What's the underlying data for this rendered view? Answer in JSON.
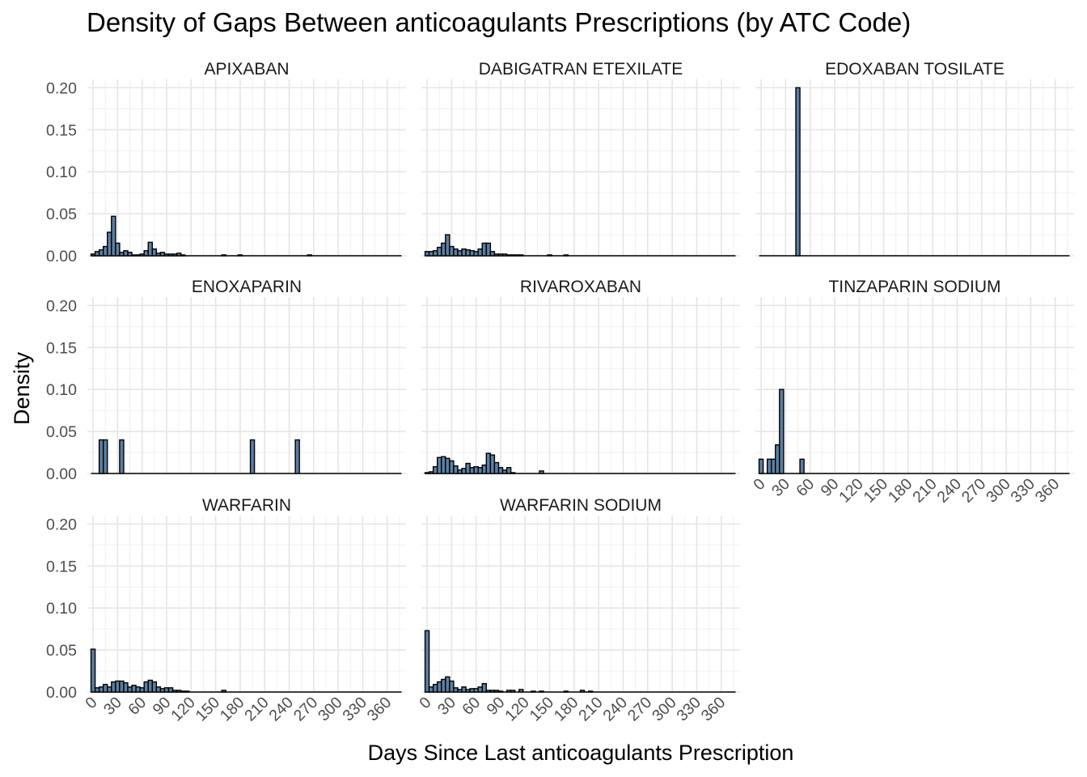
{
  "chart_data": {
    "type": "bar",
    "title": "Density of Gaps Between anticoagulants Prescriptions (by ATC Code)",
    "xlabel": "Days Since Last anticoagulants Prescription",
    "ylabel": "Density",
    "xlim": [
      -7,
      383
    ],
    "ylim": [
      0,
      0.21
    ],
    "xticks": [
      "0",
      "30",
      "60",
      "90",
      "120",
      "150",
      "180",
      "210",
      "240",
      "270",
      "300",
      "330",
      "360"
    ],
    "yticks": [
      "0.00",
      "0.05",
      "0.10",
      "0.15",
      "0.20"
    ],
    "grid": true,
    "bin_width": 5,
    "bar_fill": "#5b7fa3",
    "bar_outline": "#000000",
    "panels": [
      {
        "name": "APIXABAN",
        "bars": [
          [
            0,
            0.002
          ],
          [
            5,
            0.005
          ],
          [
            10,
            0.007
          ],
          [
            15,
            0.011
          ],
          [
            20,
            0.028
          ],
          [
            25,
            0.047
          ],
          [
            30,
            0.015
          ],
          [
            35,
            0.004
          ],
          [
            40,
            0.006
          ],
          [
            45,
            0.004
          ],
          [
            50,
            0.001
          ],
          [
            55,
            0.001
          ],
          [
            60,
            0.002
          ],
          [
            65,
            0.006
          ],
          [
            70,
            0.016
          ],
          [
            75,
            0.008
          ],
          [
            80,
            0.003
          ],
          [
            85,
            0.004
          ],
          [
            90,
            0.002
          ],
          [
            95,
            0.002
          ],
          [
            100,
            0.002
          ],
          [
            105,
            0.003
          ],
          [
            110,
            0.001
          ],
          [
            160,
            0.001
          ],
          [
            180,
            0.001
          ],
          [
            265,
            0.001
          ]
        ]
      },
      {
        "name": "DABIGATRAN ETEXILATE",
        "bars": [
          [
            0,
            0.005
          ],
          [
            5,
            0.005
          ],
          [
            10,
            0.006
          ],
          [
            15,
            0.01
          ],
          [
            20,
            0.015
          ],
          [
            25,
            0.025
          ],
          [
            30,
            0.011
          ],
          [
            35,
            0.008
          ],
          [
            40,
            0.006
          ],
          [
            45,
            0.008
          ],
          [
            50,
            0.007
          ],
          [
            55,
            0.006
          ],
          [
            60,
            0.005
          ],
          [
            65,
            0.008
          ],
          [
            70,
            0.015
          ],
          [
            75,
            0.015
          ],
          [
            80,
            0.005
          ],
          [
            85,
            0.002
          ],
          [
            90,
            0.002
          ],
          [
            95,
            0.002
          ],
          [
            100,
            0.001
          ],
          [
            105,
            0.001
          ],
          [
            110,
            0.001
          ],
          [
            115,
            0.001
          ],
          [
            150,
            0.001
          ],
          [
            170,
            0.001
          ]
        ]
      },
      {
        "name": "EDOXABAN TOSILATE",
        "bars": [
          [
            45,
            0.2
          ]
        ]
      },
      {
        "name": "ENOXAPARIN",
        "bars": [
          [
            10,
            0.04
          ],
          [
            15,
            0.04
          ],
          [
            35,
            0.04
          ],
          [
            195,
            0.04
          ],
          [
            250,
            0.04
          ]
        ]
      },
      {
        "name": "RIVAROXABAN",
        "bars": [
          [
            0,
            0.001
          ],
          [
            5,
            0.002
          ],
          [
            10,
            0.008
          ],
          [
            15,
            0.019
          ],
          [
            20,
            0.02
          ],
          [
            25,
            0.018
          ],
          [
            30,
            0.015
          ],
          [
            35,
            0.009
          ],
          [
            40,
            0.004
          ],
          [
            45,
            0.006
          ],
          [
            50,
            0.012
          ],
          [
            55,
            0.007
          ],
          [
            60,
            0.008
          ],
          [
            65,
            0.007
          ],
          [
            70,
            0.01
          ],
          [
            75,
            0.024
          ],
          [
            80,
            0.022
          ],
          [
            85,
            0.013
          ],
          [
            90,
            0.007
          ],
          [
            95,
            0.004
          ],
          [
            100,
            0.007
          ],
          [
            105,
            0.001
          ],
          [
            140,
            0.003
          ]
        ]
      },
      {
        "name": "TINZAPARIN SODIUM",
        "bars": [
          [
            0,
            0.017
          ],
          [
            10,
            0.017
          ],
          [
            15,
            0.017
          ],
          [
            20,
            0.034
          ],
          [
            25,
            0.1
          ],
          [
            50,
            0.017
          ]
        ]
      },
      {
        "name": "WARFARIN",
        "bars": [
          [
            0,
            0.051
          ],
          [
            5,
            0.005
          ],
          [
            10,
            0.006
          ],
          [
            15,
            0.009
          ],
          [
            20,
            0.006
          ],
          [
            25,
            0.012
          ],
          [
            30,
            0.013
          ],
          [
            35,
            0.013
          ],
          [
            40,
            0.011
          ],
          [
            45,
            0.006
          ],
          [
            50,
            0.008
          ],
          [
            55,
            0.006
          ],
          [
            60,
            0.005
          ],
          [
            65,
            0.012
          ],
          [
            70,
            0.014
          ],
          [
            75,
            0.012
          ],
          [
            80,
            0.006
          ],
          [
            85,
            0.004
          ],
          [
            90,
            0.005
          ],
          [
            95,
            0.005
          ],
          [
            100,
            0.002
          ],
          [
            105,
            0.002
          ],
          [
            110,
            0.001
          ],
          [
            115,
            0.001
          ],
          [
            160,
            0.002
          ]
        ]
      },
      {
        "name": "WARFARIN SODIUM",
        "bars": [
          [
            0,
            0.073
          ],
          [
            5,
            0.006
          ],
          [
            10,
            0.009
          ],
          [
            15,
            0.012
          ],
          [
            20,
            0.015
          ],
          [
            25,
            0.018
          ],
          [
            30,
            0.013
          ],
          [
            35,
            0.005
          ],
          [
            40,
            0.003
          ],
          [
            45,
            0.006
          ],
          [
            50,
            0.003
          ],
          [
            55,
            0.004
          ],
          [
            60,
            0.004
          ],
          [
            65,
            0.006
          ],
          [
            70,
            0.01
          ],
          [
            75,
            0.002
          ],
          [
            80,
            0.002
          ],
          [
            85,
            0.002
          ],
          [
            90,
            0.001
          ],
          [
            100,
            0.002
          ],
          [
            105,
            0.002
          ],
          [
            115,
            0.003
          ],
          [
            130,
            0.001
          ],
          [
            140,
            0.001
          ],
          [
            170,
            0.001
          ],
          [
            190,
            0.002
          ],
          [
            200,
            0.001
          ]
        ]
      }
    ]
  }
}
